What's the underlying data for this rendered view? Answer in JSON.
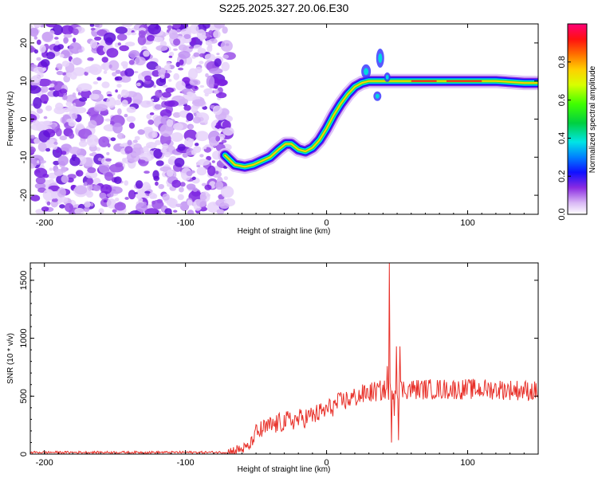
{
  "chart_data": [
    {
      "type": "heatmap",
      "title": "S225.2025.327.20.06.E30",
      "xlabel": "Height of straight line (km)",
      "ylabel": "Frequency (Hz)",
      "xlim": [
        -210,
        150
      ],
      "ylim": [
        -25,
        25
      ],
      "xticks": [
        -200,
        -100,
        0,
        100
      ],
      "yticks": [
        -20,
        -10,
        0,
        10,
        20
      ],
      "colorbar": {
        "label": "Normalized spectral amplitude",
        "range": [
          0,
          1
        ],
        "ticks": [
          "0.0",
          "0.2",
          "0.4",
          "0.6",
          "0.8"
        ]
      },
      "noise_region_x": [
        -210,
        -72
      ],
      "ridge": {
        "x": [
          -72,
          -65,
          -58,
          -52,
          -46,
          -40,
          -34,
          -29,
          -25,
          -20,
          -15,
          -10,
          -5,
          0,
          5,
          10,
          15,
          20,
          25,
          30,
          38,
          45,
          60,
          80,
          100,
          120,
          140,
          150
        ],
        "freq": [
          -9.5,
          -12,
          -12.5,
          -12,
          -11,
          -10,
          -8,
          -6.5,
          -6.5,
          -8,
          -8.5,
          -7.5,
          -5.5,
          -2.5,
          1,
          4,
          6.5,
          8.5,
          9.5,
          10,
          10,
          10,
          10,
          10,
          10,
          10,
          9.5,
          9.5
        ]
      }
    },
    {
      "type": "line",
      "xlabel": "Height of straight line (km)",
      "ylabel": "SNR (10 * v/v)",
      "xlim": [
        -210,
        150
      ],
      "ylim": [
        0,
        1650
      ],
      "xticks": [
        -200,
        -100,
        0,
        100
      ],
      "yticks": [
        0,
        500,
        1000,
        1500
      ],
      "color": "#e8312a",
      "trend": {
        "x": [
          -210,
          -70,
          -55,
          -50,
          -40,
          -30,
          -20,
          -10,
          0,
          10,
          20,
          30,
          40,
          50,
          60,
          80,
          100,
          120,
          140,
          150
        ],
        "y": [
          15,
          15,
          60,
          180,
          240,
          280,
          300,
          330,
          380,
          450,
          490,
          530,
          550,
          560,
          560,
          560,
          560,
          560,
          550,
          540
        ]
      },
      "spikes": [
        {
          "x": 44.5,
          "y": 1650
        },
        {
          "x": 46,
          "y": 100
        },
        {
          "x": 49.5,
          "y": 930
        },
        {
          "x": 51,
          "y": 120
        },
        {
          "x": 52,
          "y": 930
        },
        {
          "x": 43,
          "y": 760
        },
        {
          "x": 48,
          "y": 330
        }
      ]
    }
  ]
}
